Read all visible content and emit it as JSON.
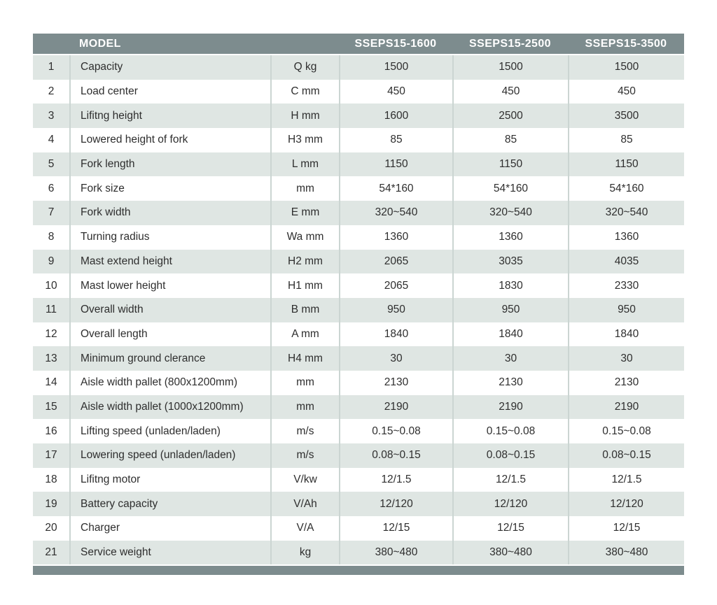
{
  "table": {
    "header": {
      "model_label": "MODEL",
      "columns": [
        "SSEPS15-1600",
        "SSEPS15-2500",
        "SSEPS15-3500"
      ]
    },
    "rows": [
      {
        "no": "1",
        "name": "Capacity",
        "unit": "Q kg",
        "values": [
          "1500",
          "1500",
          "1500"
        ]
      },
      {
        "no": "2",
        "name": "Load center",
        "unit": "C mm",
        "values": [
          "450",
          "450",
          "450"
        ]
      },
      {
        "no": "3",
        "name": "Lifitng height",
        "unit": "H mm",
        "values": [
          "1600",
          "2500",
          "3500"
        ]
      },
      {
        "no": "4",
        "name": "Lowered height of fork",
        "unit": "H3 mm",
        "values": [
          "85",
          "85",
          "85"
        ]
      },
      {
        "no": "5",
        "name": "Fork length",
        "unit": "L mm",
        "values": [
          "1150",
          "1150",
          "1150"
        ]
      },
      {
        "no": "6",
        "name": "Fork size",
        "unit": "mm",
        "values": [
          "54*160",
          "54*160",
          "54*160"
        ]
      },
      {
        "no": "7",
        "name": "Fork width",
        "unit": "E mm",
        "values": [
          "320~540",
          "320~540",
          "320~540"
        ]
      },
      {
        "no": "8",
        "name": "Turning radius",
        "unit": "Wa mm",
        "values": [
          "1360",
          "1360",
          "1360"
        ]
      },
      {
        "no": "9",
        "name": "Mast extend height",
        "unit": "H2 mm",
        "values": [
          "2065",
          "3035",
          "4035"
        ]
      },
      {
        "no": "10",
        "name": "Mast lower height",
        "unit": "H1 mm",
        "values": [
          "2065",
          "1830",
          "2330"
        ]
      },
      {
        "no": "11",
        "name": "Overall width",
        "unit": "B mm",
        "values": [
          "950",
          "950",
          "950"
        ]
      },
      {
        "no": "12",
        "name": "Overall length",
        "unit": "A mm",
        "values": [
          "1840",
          "1840",
          "1840"
        ]
      },
      {
        "no": "13",
        "name": "Minimum ground clerance",
        "unit": "H4 mm",
        "values": [
          "30",
          "30",
          "30"
        ]
      },
      {
        "no": "14",
        "name": "Aisle width pallet (800x1200mm)",
        "unit": "mm",
        "values": [
          "2130",
          "2130",
          "2130"
        ]
      },
      {
        "no": "15",
        "name": "Aisle width pallet (1000x1200mm)",
        "unit": "mm",
        "values": [
          "2190",
          "2190",
          "2190"
        ]
      },
      {
        "no": "16",
        "name": "Lifting speed (unladen/laden)",
        "unit": "m/s",
        "values": [
          "0.15~0.08",
          "0.15~0.08",
          "0.15~0.08"
        ]
      },
      {
        "no": "17",
        "name": "Lowering speed (unladen/laden)",
        "unit": "m/s",
        "values": [
          "0.08~0.15",
          "0.08~0.15",
          "0.08~0.15"
        ]
      },
      {
        "no": "18",
        "name": "Lifitng motor",
        "unit": "V/kw",
        "values": [
          "12/1.5",
          "12/1.5",
          "12/1.5"
        ]
      },
      {
        "no": "19",
        "name": "Battery capacity",
        "unit": "V/Ah",
        "values": [
          "12/120",
          "12/120",
          "12/120"
        ]
      },
      {
        "no": "20",
        "name": "Charger",
        "unit": "V/A",
        "values": [
          "12/15",
          "12/15",
          "12/15"
        ]
      },
      {
        "no": "21",
        "name": "Service weight",
        "unit": "kg",
        "values": [
          "380~480",
          "380~480",
          "380~480"
        ]
      }
    ],
    "colors": {
      "header_bg": "#7d8c8e",
      "header_text": "#ffffff",
      "row_bg": "#ffffff",
      "row_alt_bg": "#dfe6e3",
      "separator": "#cbd5d2",
      "text": "#2e2e2e"
    }
  }
}
